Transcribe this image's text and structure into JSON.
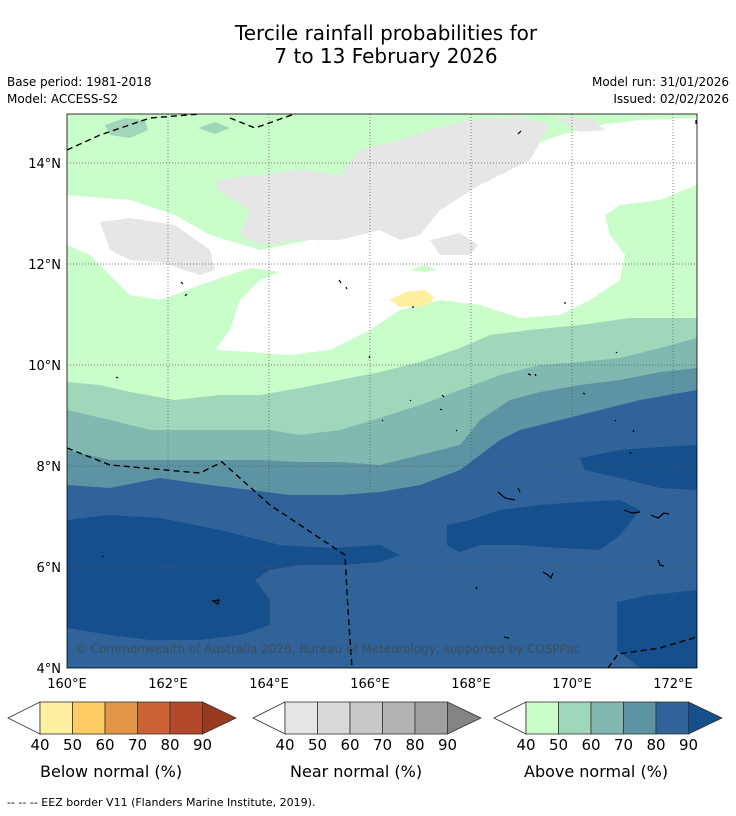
{
  "title_line1": "Tercile rainfall probabilities for",
  "title_line2": "7 to 13 February 2026",
  "base_period": "Base period: 1981-2018",
  "model": "Model: ACCESS-S2",
  "model_run": "Model run: 31/01/2026",
  "issued": "Issued: 02/02/2026",
  "copyright": "© Commonwealth of Australia 2026, Bureau of Meteorology, supported by COSPPac",
  "lat_labels": [
    "14°N",
    "12°N",
    "10°N",
    "8°N",
    "6°N",
    "4°N"
  ],
  "lon_labels": [
    "160°E",
    "162°E",
    "164°E",
    "166°E",
    "168°E",
    "170°E",
    "172°E"
  ],
  "legends": [
    {
      "title": "Below normal (%)",
      "ticks": [
        "40",
        "50",
        "60",
        "70",
        "80",
        "90"
      ],
      "colors": [
        "#fff0a0",
        "#fdcb63",
        "#e4954a",
        "#cc6135",
        "#b4482b",
        "#983a20"
      ]
    },
    {
      "title": "Near normal (%)",
      "ticks": [
        "40",
        "50",
        "60",
        "70",
        "80",
        "90"
      ],
      "colors": [
        "#e6e6e6",
        "#d9d9d9",
        "#c8c8c8",
        "#b3b3b3",
        "#9f9f9f",
        "#848484"
      ]
    },
    {
      "title": "Above normal (%)",
      "ticks": [
        "40",
        "50",
        "60",
        "70",
        "80",
        "90"
      ],
      "colors": [
        "#c9fdc9",
        "#a0d7bb",
        "#81b9b0",
        "#5c94a4",
        "#306399",
        "#154f8c"
      ]
    }
  ],
  "footer": "--  --  -- EEZ border V11 (Flanders Marine Institute, 2019)."
}
